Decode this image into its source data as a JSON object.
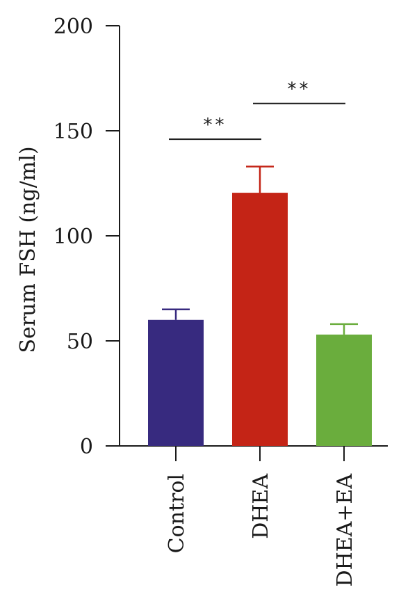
{
  "chart_data": {
    "type": "bar",
    "title": "",
    "xlabel": "",
    "ylabel": "Serum FSH (ng/ml)",
    "ylim": [
      0,
      200
    ],
    "yticks": [
      0,
      50,
      100,
      150,
      200
    ],
    "categories": [
      "Control",
      "DHEA",
      "DHEA+EA"
    ],
    "values": [
      60,
      120.5,
      53
    ],
    "errors": [
      5,
      12.5,
      5
    ],
    "colors": [
      "#372a7f",
      "#c42416",
      "#6aad3d"
    ],
    "grid": false,
    "legend": "none",
    "annotations": [
      {
        "text": "**",
        "from": "Control",
        "to": "DHEA",
        "y": 146
      },
      {
        "text": "**",
        "from": "DHEA",
        "to": "DHEA+EA",
        "y": 163
      }
    ]
  }
}
